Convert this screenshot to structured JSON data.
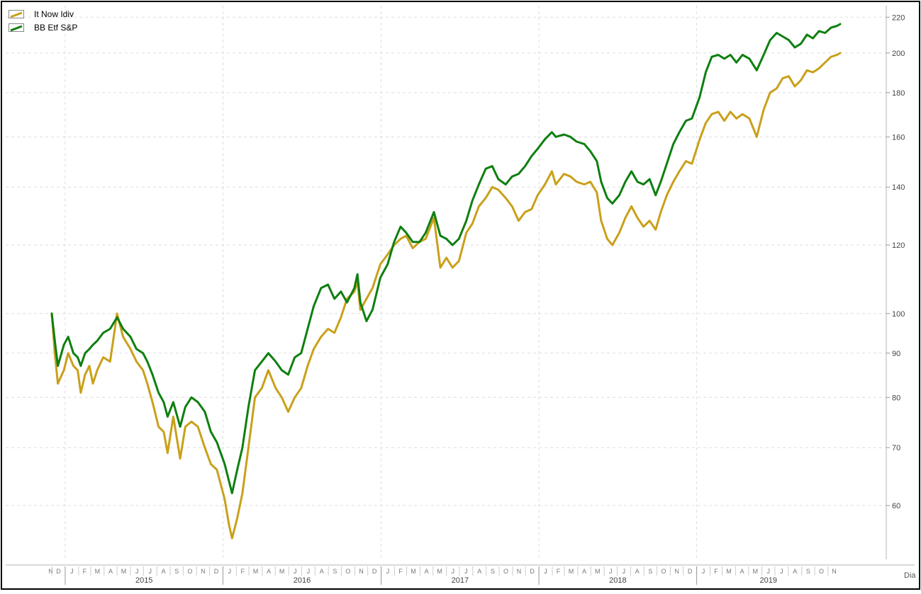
{
  "chart_data": {
    "type": "line",
    "y_scale": "log",
    "ylim": [
      52,
      226
    ],
    "y_ticks": [
      60,
      70,
      80,
      90,
      100,
      120,
      140,
      160,
      180,
      200,
      220
    ],
    "x_unit_label": "Dia",
    "years": [
      "2015",
      "2016",
      "2017",
      "2018",
      "2019"
    ],
    "month_labels": [
      "N",
      "D",
      "J",
      "F",
      "M",
      "A",
      "M",
      "J",
      "J",
      "A",
      "S",
      "O",
      "N",
      "D",
      "J",
      "F",
      "M",
      "A",
      "M",
      "J",
      "J",
      "A",
      "S",
      "O",
      "N",
      "D",
      "J",
      "F",
      "M",
      "A",
      "M",
      "J",
      "J",
      "A",
      "S",
      "O",
      "N",
      "D",
      "J",
      "F",
      "M",
      "A",
      "M",
      "J",
      "J",
      "A",
      "S",
      "O",
      "N",
      "D",
      "J",
      "F",
      "M",
      "A",
      "M",
      "J",
      "J",
      "A",
      "S",
      "O",
      "N"
    ],
    "x_start": "2014-11-26",
    "x_end": "2019-11-29",
    "legend_position": "top-left",
    "grid": true,
    "series": [
      {
        "name": "It Now Idiv",
        "color": "#c9a01a",
        "points": [
          [
            "2014-12-01",
            100
          ],
          [
            "2014-12-08",
            90
          ],
          [
            "2014-12-15",
            83
          ],
          [
            "2014-12-29",
            86
          ],
          [
            "2015-01-08",
            90
          ],
          [
            "2015-01-20",
            87
          ],
          [
            "2015-01-30",
            86
          ],
          [
            "2015-02-06",
            81
          ],
          [
            "2015-02-16",
            85
          ],
          [
            "2015-02-26",
            87
          ],
          [
            "2015-03-06",
            83
          ],
          [
            "2015-03-16",
            86
          ],
          [
            "2015-03-30",
            89
          ],
          [
            "2015-04-15",
            88
          ],
          [
            "2015-05-01",
            100
          ],
          [
            "2015-05-15",
            94
          ],
          [
            "2015-06-01",
            91
          ],
          [
            "2015-06-15",
            88
          ],
          [
            "2015-06-30",
            86
          ],
          [
            "2015-07-10",
            83
          ],
          [
            "2015-07-22",
            79
          ],
          [
            "2015-08-05",
            74
          ],
          [
            "2015-08-17",
            73
          ],
          [
            "2015-08-26",
            69
          ],
          [
            "2015-09-08",
            76
          ],
          [
            "2015-09-24",
            68
          ],
          [
            "2015-10-06",
            74
          ],
          [
            "2015-10-20",
            75
          ],
          [
            "2015-11-04",
            74
          ],
          [
            "2015-11-20",
            70
          ],
          [
            "2015-12-04",
            67
          ],
          [
            "2015-12-18",
            66
          ],
          [
            "2016-01-05",
            61
          ],
          [
            "2016-01-15",
            57
          ],
          [
            "2016-01-22",
            55
          ],
          [
            "2016-02-03",
            58
          ],
          [
            "2016-02-15",
            62
          ],
          [
            "2016-02-29",
            70
          ],
          [
            "2016-03-15",
            80
          ],
          [
            "2016-03-31",
            82
          ],
          [
            "2016-04-15",
            86
          ],
          [
            "2016-05-02",
            82
          ],
          [
            "2016-05-16",
            80
          ],
          [
            "2016-05-31",
            77
          ],
          [
            "2016-06-15",
            80
          ],
          [
            "2016-06-30",
            82
          ],
          [
            "2016-07-15",
            87
          ],
          [
            "2016-07-29",
            91
          ],
          [
            "2016-08-15",
            94
          ],
          [
            "2016-08-31",
            96
          ],
          [
            "2016-09-15",
            95
          ],
          [
            "2016-09-30",
            99
          ],
          [
            "2016-10-14",
            104
          ],
          [
            "2016-10-31",
            106
          ],
          [
            "2016-11-07",
            109
          ],
          [
            "2016-11-14",
            101
          ],
          [
            "2016-11-28",
            104
          ],
          [
            "2016-12-12",
            107
          ],
          [
            "2016-12-30",
            114
          ],
          [
            "2017-01-16",
            117
          ],
          [
            "2017-01-31",
            120
          ],
          [
            "2017-02-15",
            122
          ],
          [
            "2017-02-28",
            123
          ],
          [
            "2017-03-15",
            119
          ],
          [
            "2017-03-31",
            121
          ],
          [
            "2017-04-14",
            122
          ],
          [
            "2017-05-03",
            129
          ],
          [
            "2017-05-18",
            113
          ],
          [
            "2017-06-01",
            116
          ],
          [
            "2017-06-15",
            113
          ],
          [
            "2017-06-30",
            115
          ],
          [
            "2017-07-17",
            124
          ],
          [
            "2017-07-31",
            127
          ],
          [
            "2017-08-15",
            133
          ],
          [
            "2017-08-31",
            136
          ],
          [
            "2017-09-15",
            140
          ],
          [
            "2017-09-29",
            139
          ],
          [
            "2017-10-16",
            136
          ],
          [
            "2017-10-31",
            133
          ],
          [
            "2017-11-15",
            128
          ],
          [
            "2017-11-30",
            131
          ],
          [
            "2017-12-15",
            132
          ],
          [
            "2017-12-29",
            137
          ],
          [
            "2018-01-15",
            141
          ],
          [
            "2018-01-31",
            146
          ],
          [
            "2018-02-09",
            141
          ],
          [
            "2018-02-28",
            145
          ],
          [
            "2018-03-15",
            144
          ],
          [
            "2018-03-29",
            142
          ],
          [
            "2018-04-16",
            141
          ],
          [
            "2018-04-30",
            142
          ],
          [
            "2018-05-15",
            138
          ],
          [
            "2018-05-25",
            128
          ],
          [
            "2018-06-08",
            122
          ],
          [
            "2018-06-20",
            120
          ],
          [
            "2018-07-06",
            124
          ],
          [
            "2018-07-20",
            129
          ],
          [
            "2018-08-03",
            133
          ],
          [
            "2018-08-17",
            129
          ],
          [
            "2018-08-31",
            126
          ],
          [
            "2018-09-14",
            128
          ],
          [
            "2018-09-28",
            125
          ],
          [
            "2018-10-10",
            131
          ],
          [
            "2018-10-24",
            137
          ],
          [
            "2018-11-08",
            142
          ],
          [
            "2018-11-22",
            146
          ],
          [
            "2018-12-07",
            150
          ],
          [
            "2018-12-21",
            149
          ],
          [
            "2019-01-08",
            159
          ],
          [
            "2019-01-22",
            166
          ],
          [
            "2019-02-05",
            170
          ],
          [
            "2019-02-20",
            171
          ],
          [
            "2019-03-06",
            167
          ],
          [
            "2019-03-20",
            171
          ],
          [
            "2019-04-03",
            168
          ],
          [
            "2019-04-17",
            170
          ],
          [
            "2019-05-03",
            168
          ],
          [
            "2019-05-20",
            160
          ],
          [
            "2019-06-05",
            172
          ],
          [
            "2019-06-20",
            180
          ],
          [
            "2019-07-05",
            182
          ],
          [
            "2019-07-19",
            187
          ],
          [
            "2019-08-02",
            188
          ],
          [
            "2019-08-16",
            183
          ],
          [
            "2019-08-30",
            186
          ],
          [
            "2019-09-13",
            191
          ],
          [
            "2019-09-27",
            190
          ],
          [
            "2019-10-11",
            192
          ],
          [
            "2019-10-25",
            195
          ],
          [
            "2019-11-08",
            198
          ],
          [
            "2019-11-22",
            199
          ],
          [
            "2019-11-29",
            200
          ]
        ]
      },
      {
        "name": "BB Etf S&P",
        "color": "#0e7f10",
        "points": [
          [
            "2014-12-01",
            100
          ],
          [
            "2014-12-08",
            93
          ],
          [
            "2014-12-15",
            87
          ],
          [
            "2014-12-29",
            92
          ],
          [
            "2015-01-08",
            94
          ],
          [
            "2015-01-20",
            90
          ],
          [
            "2015-01-30",
            89
          ],
          [
            "2015-02-06",
            87
          ],
          [
            "2015-02-16",
            90
          ],
          [
            "2015-02-26",
            91
          ],
          [
            "2015-03-06",
            92
          ],
          [
            "2015-03-16",
            93
          ],
          [
            "2015-03-30",
            95
          ],
          [
            "2015-04-15",
            96
          ],
          [
            "2015-05-01",
            99
          ],
          [
            "2015-05-15",
            96
          ],
          [
            "2015-06-01",
            94
          ],
          [
            "2015-06-15",
            91
          ],
          [
            "2015-06-30",
            90
          ],
          [
            "2015-07-10",
            88
          ],
          [
            "2015-07-22",
            85
          ],
          [
            "2015-08-05",
            81
          ],
          [
            "2015-08-17",
            79
          ],
          [
            "2015-08-26",
            76
          ],
          [
            "2015-09-08",
            79
          ],
          [
            "2015-09-24",
            74
          ],
          [
            "2015-10-06",
            78
          ],
          [
            "2015-10-20",
            80
          ],
          [
            "2015-11-04",
            79
          ],
          [
            "2015-11-20",
            77
          ],
          [
            "2015-12-04",
            73
          ],
          [
            "2015-12-18",
            71
          ],
          [
            "2016-01-05",
            67
          ],
          [
            "2016-01-15",
            64
          ],
          [
            "2016-01-22",
            62
          ],
          [
            "2016-02-03",
            66
          ],
          [
            "2016-02-15",
            70
          ],
          [
            "2016-02-29",
            78
          ],
          [
            "2016-03-15",
            86
          ],
          [
            "2016-03-31",
            88
          ],
          [
            "2016-04-15",
            90
          ],
          [
            "2016-05-02",
            88
          ],
          [
            "2016-05-16",
            86
          ],
          [
            "2016-05-31",
            85
          ],
          [
            "2016-06-15",
            89
          ],
          [
            "2016-06-30",
            90
          ],
          [
            "2016-07-15",
            96
          ],
          [
            "2016-07-29",
            102
          ],
          [
            "2016-08-15",
            107
          ],
          [
            "2016-08-31",
            108
          ],
          [
            "2016-09-15",
            104
          ],
          [
            "2016-09-30",
            106
          ],
          [
            "2016-10-14",
            103
          ],
          [
            "2016-10-31",
            107
          ],
          [
            "2016-11-07",
            111
          ],
          [
            "2016-11-14",
            103
          ],
          [
            "2016-11-28",
            98
          ],
          [
            "2016-12-12",
            101
          ],
          [
            "2016-12-30",
            110
          ],
          [
            "2017-01-16",
            114
          ],
          [
            "2017-01-31",
            121
          ],
          [
            "2017-02-15",
            126
          ],
          [
            "2017-02-28",
            124
          ],
          [
            "2017-03-15",
            121
          ],
          [
            "2017-03-31",
            121
          ],
          [
            "2017-04-14",
            124
          ],
          [
            "2017-05-03",
            131
          ],
          [
            "2017-05-18",
            123
          ],
          [
            "2017-06-01",
            122
          ],
          [
            "2017-06-15",
            120
          ],
          [
            "2017-06-30",
            122
          ],
          [
            "2017-07-17",
            128
          ],
          [
            "2017-07-31",
            135
          ],
          [
            "2017-08-15",
            141
          ],
          [
            "2017-08-31",
            147
          ],
          [
            "2017-09-15",
            148
          ],
          [
            "2017-09-29",
            143
          ],
          [
            "2017-10-16",
            141
          ],
          [
            "2017-10-31",
            144
          ],
          [
            "2017-11-15",
            145
          ],
          [
            "2017-11-30",
            148
          ],
          [
            "2017-12-15",
            152
          ],
          [
            "2017-12-29",
            155
          ],
          [
            "2018-01-15",
            159
          ],
          [
            "2018-01-31",
            162
          ],
          [
            "2018-02-09",
            160
          ],
          [
            "2018-02-28",
            161
          ],
          [
            "2018-03-15",
            160
          ],
          [
            "2018-03-29",
            158
          ],
          [
            "2018-04-16",
            157
          ],
          [
            "2018-04-30",
            154
          ],
          [
            "2018-05-15",
            150
          ],
          [
            "2018-05-25",
            142
          ],
          [
            "2018-06-08",
            136
          ],
          [
            "2018-06-20",
            134
          ],
          [
            "2018-07-06",
            137
          ],
          [
            "2018-07-20",
            142
          ],
          [
            "2018-08-03",
            146
          ],
          [
            "2018-08-17",
            142
          ],
          [
            "2018-08-31",
            141
          ],
          [
            "2018-09-14",
            143
          ],
          [
            "2018-09-28",
            137
          ],
          [
            "2018-10-10",
            142
          ],
          [
            "2018-10-24",
            149
          ],
          [
            "2018-11-08",
            157
          ],
          [
            "2018-11-22",
            162
          ],
          [
            "2018-12-07",
            167
          ],
          [
            "2018-12-21",
            168
          ],
          [
            "2019-01-08",
            178
          ],
          [
            "2019-01-22",
            190
          ],
          [
            "2019-02-05",
            198
          ],
          [
            "2019-02-20",
            199
          ],
          [
            "2019-03-06",
            197
          ],
          [
            "2019-03-20",
            199
          ],
          [
            "2019-04-03",
            195
          ],
          [
            "2019-04-17",
            199
          ],
          [
            "2019-05-03",
            197
          ],
          [
            "2019-05-20",
            191
          ],
          [
            "2019-06-05",
            199
          ],
          [
            "2019-06-20",
            207
          ],
          [
            "2019-07-05",
            211
          ],
          [
            "2019-07-19",
            209
          ],
          [
            "2019-08-02",
            207
          ],
          [
            "2019-08-16",
            203
          ],
          [
            "2019-08-30",
            205
          ],
          [
            "2019-09-13",
            210
          ],
          [
            "2019-09-27",
            208
          ],
          [
            "2019-10-11",
            212
          ],
          [
            "2019-10-25",
            211
          ],
          [
            "2019-11-08",
            214
          ],
          [
            "2019-11-22",
            215
          ],
          [
            "2019-11-29",
            216
          ]
        ]
      }
    ]
  }
}
